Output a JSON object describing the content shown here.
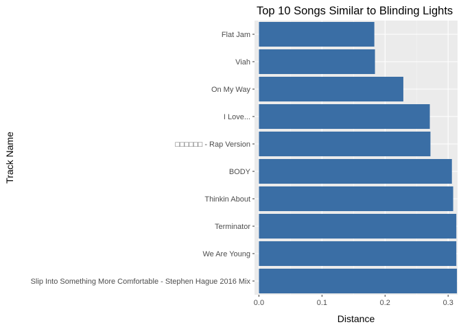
{
  "chart_data": {
    "type": "bar",
    "orientation": "horizontal",
    "title": "Top 10 Songs Similar to Blinding Lights",
    "xlabel": "Distance",
    "ylabel": "Track Name",
    "xlim": [
      -0.007,
      0.315
    ],
    "xticks": [
      0.0,
      0.1,
      0.2,
      0.3
    ],
    "xtick_labels": [
      "0.0",
      "0.1",
      "0.2",
      "0.3"
    ],
    "grid": true,
    "legend": "none",
    "categories": [
      "Flat Jam",
      "Viah",
      "On My Way",
      "I Love...",
      "□□□□□□ - Rap Version",
      "BODY",
      "Thinkin About",
      "Terminator",
      "We Are Young",
      "Slip Into Something More Comfortable - Stephen Hague 2016 Mix"
    ],
    "values": [
      0.183,
      0.184,
      0.229,
      0.271,
      0.272,
      0.306,
      0.308,
      0.313,
      0.313,
      0.314
    ]
  },
  "colors": {
    "bar": "#3a6ea5",
    "panel_background": "#ebebeb",
    "grid_major": "#ffffff",
    "grid_minor": "#f5f5f5"
  }
}
